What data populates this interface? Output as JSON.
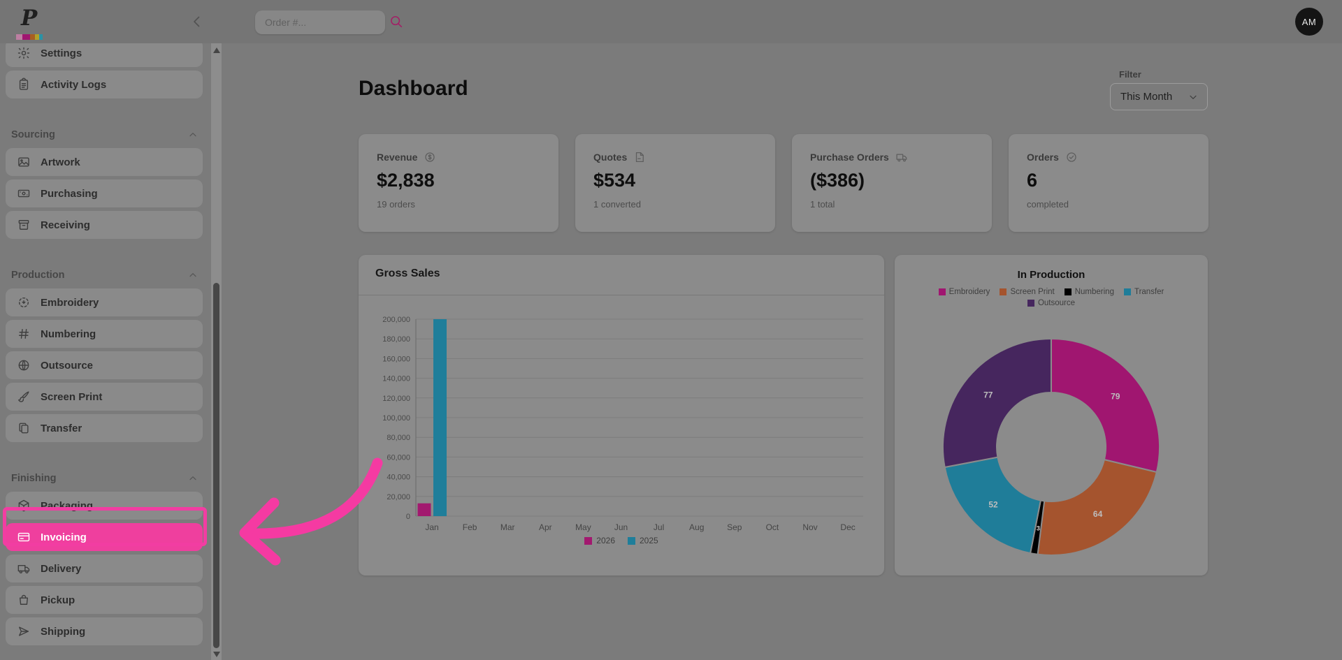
{
  "topbar": {
    "logo_letter": "P",
    "logo_stripe_colors": [
      "#bd7fa2",
      "#a01670",
      "#a85f21",
      "#b0a02a",
      "#2a93a6"
    ],
    "search": {
      "placeholder": "Order #..."
    },
    "avatar_initials": "AM"
  },
  "sidebar": {
    "top_items": [
      {
        "label": "Settings",
        "icon": "gear-icon"
      },
      {
        "label": "Activity Logs",
        "icon": "clipboard-icon"
      }
    ],
    "sections": [
      {
        "title": "Sourcing",
        "items": [
          {
            "label": "Artwork",
            "icon": "image-icon"
          },
          {
            "label": "Purchasing",
            "icon": "banknote-icon"
          },
          {
            "label": "Receiving",
            "icon": "archive-icon"
          }
        ]
      },
      {
        "title": "Production",
        "items": [
          {
            "label": "Embroidery",
            "icon": "stitch-icon"
          },
          {
            "label": "Numbering",
            "icon": "hash-icon"
          },
          {
            "label": "Outsource",
            "icon": "globe-icon"
          },
          {
            "label": "Screen Print",
            "icon": "brush-icon"
          },
          {
            "label": "Transfer",
            "icon": "copy-icon"
          }
        ]
      },
      {
        "title": "Finishing",
        "items": [
          {
            "label": "Packaging",
            "icon": "cube-icon"
          },
          {
            "label": "Invoicing",
            "icon": "credit-card-icon",
            "active": true
          },
          {
            "label": "Delivery",
            "icon": "truck-icon"
          },
          {
            "label": "Pickup",
            "icon": "bag-icon"
          },
          {
            "label": "Shipping",
            "icon": "paper-plane-icon"
          }
        ]
      }
    ]
  },
  "page": {
    "title": "Dashboard",
    "filter_label": "Filter",
    "filter_value": "This Month"
  },
  "stat_cards": [
    {
      "label": "Revenue",
      "icon": "dollar-circle-icon",
      "value": "$2,838",
      "sub": "19 orders"
    },
    {
      "label": "Quotes",
      "icon": "document-icon",
      "value": "$534",
      "sub": "1 converted"
    },
    {
      "label": "Purchase Orders",
      "icon": "truck-icon",
      "value": "($386)",
      "sub": "1 total"
    },
    {
      "label": "Orders",
      "icon": "check-circle-icon",
      "value": "6",
      "sub": "completed"
    }
  ],
  "chart_data": [
    {
      "type": "bar",
      "title": "Gross Sales",
      "categories": [
        "Jan",
        "Feb",
        "Mar",
        "Apr",
        "May",
        "Jun",
        "Jul",
        "Aug",
        "Sep",
        "Oct",
        "Nov",
        "Dec"
      ],
      "series": [
        {
          "name": "2026",
          "color": "#a2196f",
          "values": [
            13000,
            0,
            0,
            0,
            0,
            0,
            0,
            0,
            0,
            0,
            0,
            0
          ]
        },
        {
          "name": "2025",
          "color": "#1f7e9a",
          "values": [
            200000,
            0,
            0,
            0,
            0,
            0,
            0,
            0,
            0,
            0,
            0,
            0
          ]
        }
      ],
      "ylim": [
        0,
        200000
      ],
      "ytick_step": 20000,
      "grid": true,
      "legend_position": "bottom"
    },
    {
      "type": "pie",
      "donut": true,
      "title": "In Production",
      "legend_position": "top",
      "legend_rows": [
        [
          "Embroidery",
          "Screen Print",
          "Numbering",
          "Transfer"
        ],
        [
          "Outsource"
        ]
      ],
      "segments": [
        {
          "label": "Embroidery",
          "value": 79,
          "color": "#a01670"
        },
        {
          "label": "Screen Print",
          "value": 64,
          "color": "#a5542e"
        },
        {
          "label": "Numbering",
          "value": 3,
          "color": "#000000"
        },
        {
          "label": "Transfer",
          "value": 52,
          "color": "#1f7d99"
        },
        {
          "label": "Outsource",
          "value": 77,
          "color": "#46265e"
        }
      ]
    }
  ],
  "annotation": {
    "arrow_color": "#f53aa2",
    "highlight_border_color": "#f23da2"
  },
  "colors": {
    "accent_pink": "#ef3f9e",
    "card_bg": "#8b8b8b",
    "page_bg": "#7b7b7b"
  }
}
